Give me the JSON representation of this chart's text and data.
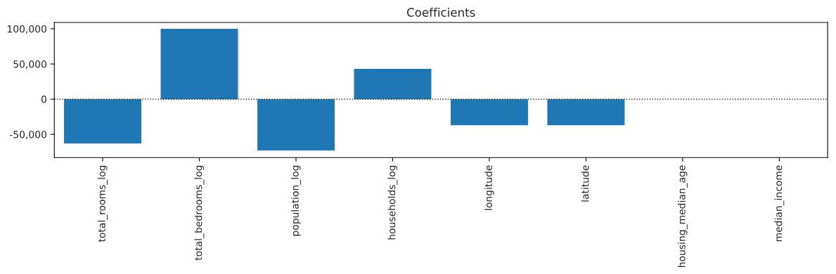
{
  "chart_data": {
    "type": "bar",
    "title": "Coefficients",
    "categories": [
      "total_rooms_log",
      "total_bedrooms_log",
      "population_log",
      "households_log",
      "longitude",
      "latitude",
      "housing_median_age",
      "median_income"
    ],
    "values": [
      -63000,
      100000,
      -73000,
      43000,
      -37000,
      -37000,
      0,
      0
    ],
    "color": "#1f77b4",
    "ylim": [
      -83000,
      109000
    ],
    "yticks": [
      {
        "value": -50000,
        "label": "-50,000"
      },
      0,
      {
        "value": 50000,
        "label": "50,000"
      },
      {
        "value": 100000,
        "label": "100,000"
      }
    ],
    "ref_lines": [
      {
        "axis": "y",
        "value": 0,
        "color": "#000000",
        "line_style": "dotted"
      }
    ],
    "grid": false,
    "legend": false
  }
}
